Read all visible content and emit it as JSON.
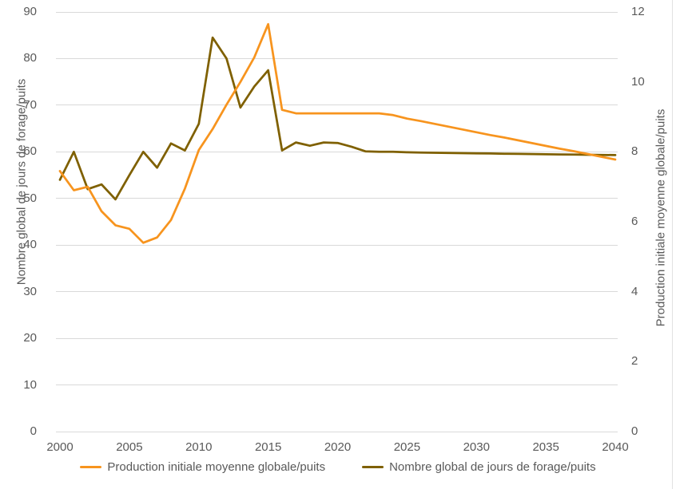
{
  "chart_data": {
    "type": "line",
    "title": "",
    "x": [
      2000,
      2001,
      2002,
      2003,
      2004,
      2005,
      2006,
      2007,
      2008,
      2009,
      2010,
      2011,
      2012,
      2013,
      2014,
      2015,
      2016,
      2017,
      2018,
      2019,
      2020,
      2021,
      2022,
      2023,
      2024,
      2025,
      2026,
      2027,
      2028,
      2029,
      2030,
      2031,
      2032,
      2033,
      2034,
      2035,
      2036,
      2037,
      2038,
      2039,
      2040
    ],
    "series": [
      {
        "name": "Production initiale moyenne globale/puits",
        "axis": "right",
        "color": "#F7941E",
        "values": [
          7.45,
          6.9,
          7.0,
          6.3,
          5.9,
          5.8,
          5.4,
          5.55,
          6.05,
          6.95,
          8.05,
          8.65,
          9.35,
          10.0,
          10.7,
          11.65,
          9.2,
          9.1,
          9.1,
          9.1,
          9.1,
          9.1,
          9.1,
          9.1,
          9.05,
          8.95,
          8.88,
          8.8,
          8.72,
          8.64,
          8.56,
          8.48,
          8.41,
          8.33,
          8.25,
          8.17,
          8.09,
          8.02,
          7.94,
          7.86,
          7.78
        ]
      },
      {
        "name": "Nombre global de jours de forage/puits",
        "axis": "left",
        "color": "#7F6000",
        "values": [
          54,
          60,
          52,
          53,
          49.8,
          55,
          60,
          56.6,
          61.8,
          60.3,
          66,
          84.5,
          80,
          69.5,
          74,
          77.5,
          60.3,
          62,
          61.3,
          62,
          61.9,
          61.1,
          60.1,
          60,
          60,
          59.9,
          59.85,
          59.8,
          59.75,
          59.72,
          59.68,
          59.64,
          59.6,
          59.56,
          59.52,
          59.48,
          59.44,
          59.4,
          59.37,
          59.33,
          59.3
        ]
      }
    ],
    "left_axis": {
      "label": "Nombre global de jours de forage/puits",
      "min": 0,
      "max": 90,
      "ticks": [
        0,
        10,
        20,
        30,
        40,
        50,
        60,
        70,
        80,
        90
      ]
    },
    "right_axis": {
      "label": "Production initiale moyenne globale/puits",
      "min": 0,
      "max": 12,
      "ticks": [
        0,
        2,
        4,
        6,
        8,
        10,
        12
      ]
    },
    "x_axis": {
      "min": 2000,
      "max": 2040,
      "ticks": [
        2000,
        2005,
        2010,
        2015,
        2020,
        2025,
        2030,
        2035,
        2040
      ]
    },
    "grid": true,
    "legend_position": "bottom",
    "legend": [
      "Production initiale moyenne globale/puits",
      "Nombre global de jours de forage/puits"
    ]
  },
  "styles": {
    "grid_color": "#D9D9D9",
    "text_color": "#595959",
    "background": "#FFFFFF",
    "orange_series_color": "#F7941E",
    "dark_series_color": "#7F6000"
  }
}
